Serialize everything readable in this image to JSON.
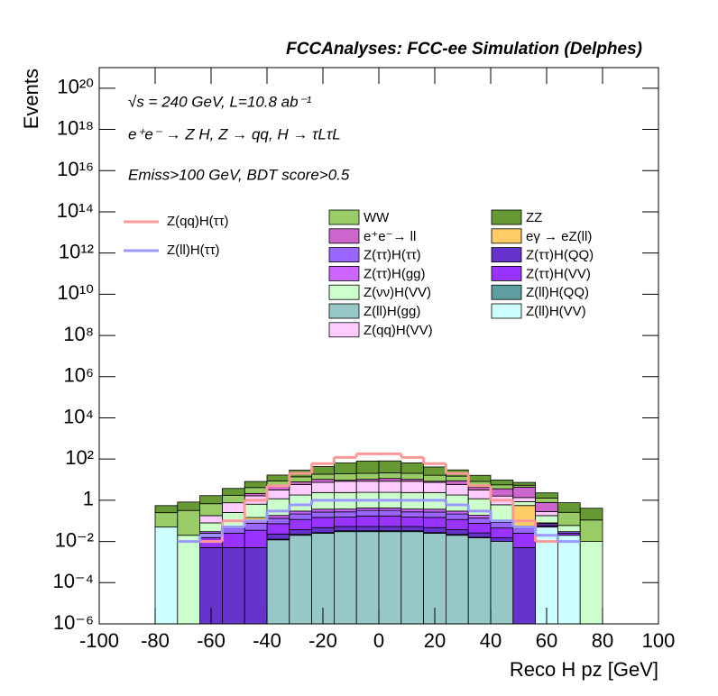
{
  "chart_data": {
    "type": "histogram",
    "stacked": true,
    "log_y": true,
    "title": "FCCAnalyses: FCC-ee Simulation (Delphes)",
    "x_label": "Reco H pz [GeV]",
    "y_label": "Events",
    "annotations": [
      "√s = 240 GeV, L=10.8 ab⁻¹",
      "e⁺e⁻ → Z H, Z → qq, H → τLτL",
      "Emiss>100 GeV, BDT score>0.5"
    ],
    "bins": [
      -80,
      -72,
      -64,
      -56,
      -48,
      -40,
      -32,
      -24,
      -16,
      -8,
      0,
      8,
      16,
      24,
      32,
      40,
      48,
      56,
      64,
      72,
      80
    ],
    "xlim": [
      -100,
      100
    ],
    "xticks": [
      -100,
      -80,
      -60,
      -40,
      -20,
      0,
      20,
      40,
      60,
      80,
      100
    ],
    "ylim": [
      1e-06,
      1e+21
    ],
    "yticks": [
      {
        "value": 1e-06,
        "label": "10⁻⁶"
      },
      {
        "value": 0.0001,
        "label": "10⁻⁴"
      },
      {
        "value": 0.01,
        "label": "10⁻²"
      },
      1,
      {
        "value": 100,
        "label": "10²"
      },
      {
        "value": 10000,
        "label": "10⁴"
      },
      {
        "value": 1000000.0,
        "label": "10⁶"
      },
      {
        "value": 100000000.0,
        "label": "10⁸"
      },
      {
        "value": 10000000000.0,
        "label": "10¹⁰"
      },
      {
        "value": 1000000000000.0,
        "label": "10¹²"
      },
      {
        "value": 100000000000000.0,
        "label": "10¹⁴"
      },
      {
        "value": 1e+16,
        "label": "10¹⁶"
      },
      {
        "value": 1e+18,
        "label": "10¹⁸"
      },
      {
        "value": 1e+20,
        "label": "10²⁰"
      }
    ],
    "series": [
      {
        "name": "Z(ll)H(gg)",
        "color": "#96c8c8",
        "values": [
          0,
          0,
          0,
          0,
          0,
          0.012,
          0.02,
          0.025,
          0.03,
          0.03,
          0.03,
          0.03,
          0.025,
          0.02,
          0.015,
          0.01,
          0,
          0,
          0,
          0
        ]
      },
      {
        "name": "Z(ll)H(VV)",
        "color": "#ccffff",
        "values": [
          0.05,
          0,
          0,
          0,
          0,
          0,
          0,
          0,
          0,
          0,
          0,
          0,
          0,
          0,
          0,
          0,
          0,
          0.05,
          0.02,
          0
        ]
      },
      {
        "name": "Z(ll)H(QQ)",
        "color": "#5f9ea0",
        "values": [
          0,
          0,
          0,
          0,
          0,
          0.001,
          0.002,
          0.002,
          0.003,
          0.003,
          0.003,
          0.003,
          0.002,
          0.002,
          0.001,
          0,
          0,
          0,
          0,
          0
        ]
      },
      {
        "name": "Z(ττ)H(QQ)",
        "color": "#6633cc",
        "values": [
          0,
          0,
          0.005,
          0.005,
          0.005,
          0.01,
          0.015,
          0.02,
          0.02,
          0.02,
          0.02,
          0.02,
          0.02,
          0.015,
          0.01,
          0.005,
          0.005,
          0.005,
          0,
          0
        ]
      },
      {
        "name": "Z(ττ)H(VV)",
        "color": "#9933ff",
        "values": [
          0,
          0,
          0.01,
          0.02,
          0.03,
          0.05,
          0.08,
          0.1,
          0.1,
          0.12,
          0.12,
          0.1,
          0.1,
          0.08,
          0.05,
          0.03,
          0.02,
          0.01,
          0.005,
          0
        ]
      },
      {
        "name": "Z(ττ)H(ττ)",
        "color": "#9966ff",
        "values": [
          0,
          0,
          0.01,
          0.02,
          0.04,
          0.06,
          0.1,
          0.12,
          0.12,
          0.15,
          0.15,
          0.12,
          0.12,
          0.1,
          0.06,
          0.04,
          0.02,
          0.01,
          0.005,
          0
        ]
      },
      {
        "name": "Z(ττ)H(gg)",
        "color": "#cc66ff",
        "values": [
          0,
          0,
          0.005,
          0.01,
          0.02,
          0.05,
          0.08,
          0.1,
          0.1,
          0.1,
          0.1,
          0.1,
          0.1,
          0.08,
          0.05,
          0.02,
          0.01,
          0.005,
          0,
          0
        ]
      },
      {
        "name": "eγ → eZ(ll)",
        "color": "#ffcc66",
        "values": [
          0,
          0,
          0,
          0,
          0.05,
          0,
          0,
          0,
          0,
          0,
          0,
          0,
          0,
          0,
          0,
          0,
          0.5,
          0,
          0,
          0
        ]
      },
      {
        "name": "Z(νν)H(VV)",
        "color": "#ccffcc",
        "values": [
          0,
          0.02,
          0.05,
          0.2,
          0.5,
          1,
          1.5,
          2,
          2,
          2,
          2,
          2,
          2,
          1.5,
          1,
          0.5,
          0.3,
          0.1,
          0.03,
          0.01
        ]
      },
      {
        "name": "Z(qq)H(VV)",
        "color": "#ffccff",
        "values": [
          0,
          0,
          0.1,
          0.5,
          1,
          2,
          4,
          5,
          6,
          6,
          6,
          6,
          5,
          4,
          2,
          1,
          0.5,
          0.1,
          0,
          0
        ]
      },
      {
        "name": "e⁺e⁻→ ll",
        "color": "#cc66cc",
        "values": [
          0,
          0,
          0,
          0,
          0.5,
          1.5,
          2,
          3,
          1,
          2,
          3,
          2,
          1,
          3,
          1,
          2,
          3,
          0.5,
          0,
          0
        ]
      },
      {
        "name": "WW",
        "color": "#99cc66",
        "values": [
          0.2,
          0.3,
          0.5,
          1,
          2,
          4,
          6,
          8,
          10,
          10,
          10,
          10,
          8,
          6,
          4,
          2,
          1,
          0.5,
          0.2,
          0.1
        ]
      },
      {
        "name": "ZZ",
        "color": "#669933",
        "values": [
          0.3,
          0.5,
          1,
          2,
          4,
          8,
          15,
          25,
          45,
          60,
          60,
          45,
          25,
          15,
          8,
          4,
          2,
          1,
          0.5,
          0.3
        ]
      }
    ],
    "lines": [
      {
        "name": "Z(qq)H(ττ)",
        "color": "#ff9999",
        "values": [
          null,
          null,
          0.01,
          0.1,
          1,
          5,
          20,
          60,
          120,
          180,
          180,
          120,
          60,
          20,
          5,
          1,
          0.1,
          0.01,
          null,
          null
        ]
      },
      {
        "name": "Z(ll)H(ττ)",
        "color": "#9999ff",
        "values": [
          null,
          0.01,
          0.02,
          0.05,
          0.1,
          0.3,
          0.6,
          1,
          1,
          1,
          1,
          1,
          1,
          0.6,
          0.3,
          0.1,
          0.05,
          0.02,
          0.01,
          null
        ]
      }
    ]
  }
}
